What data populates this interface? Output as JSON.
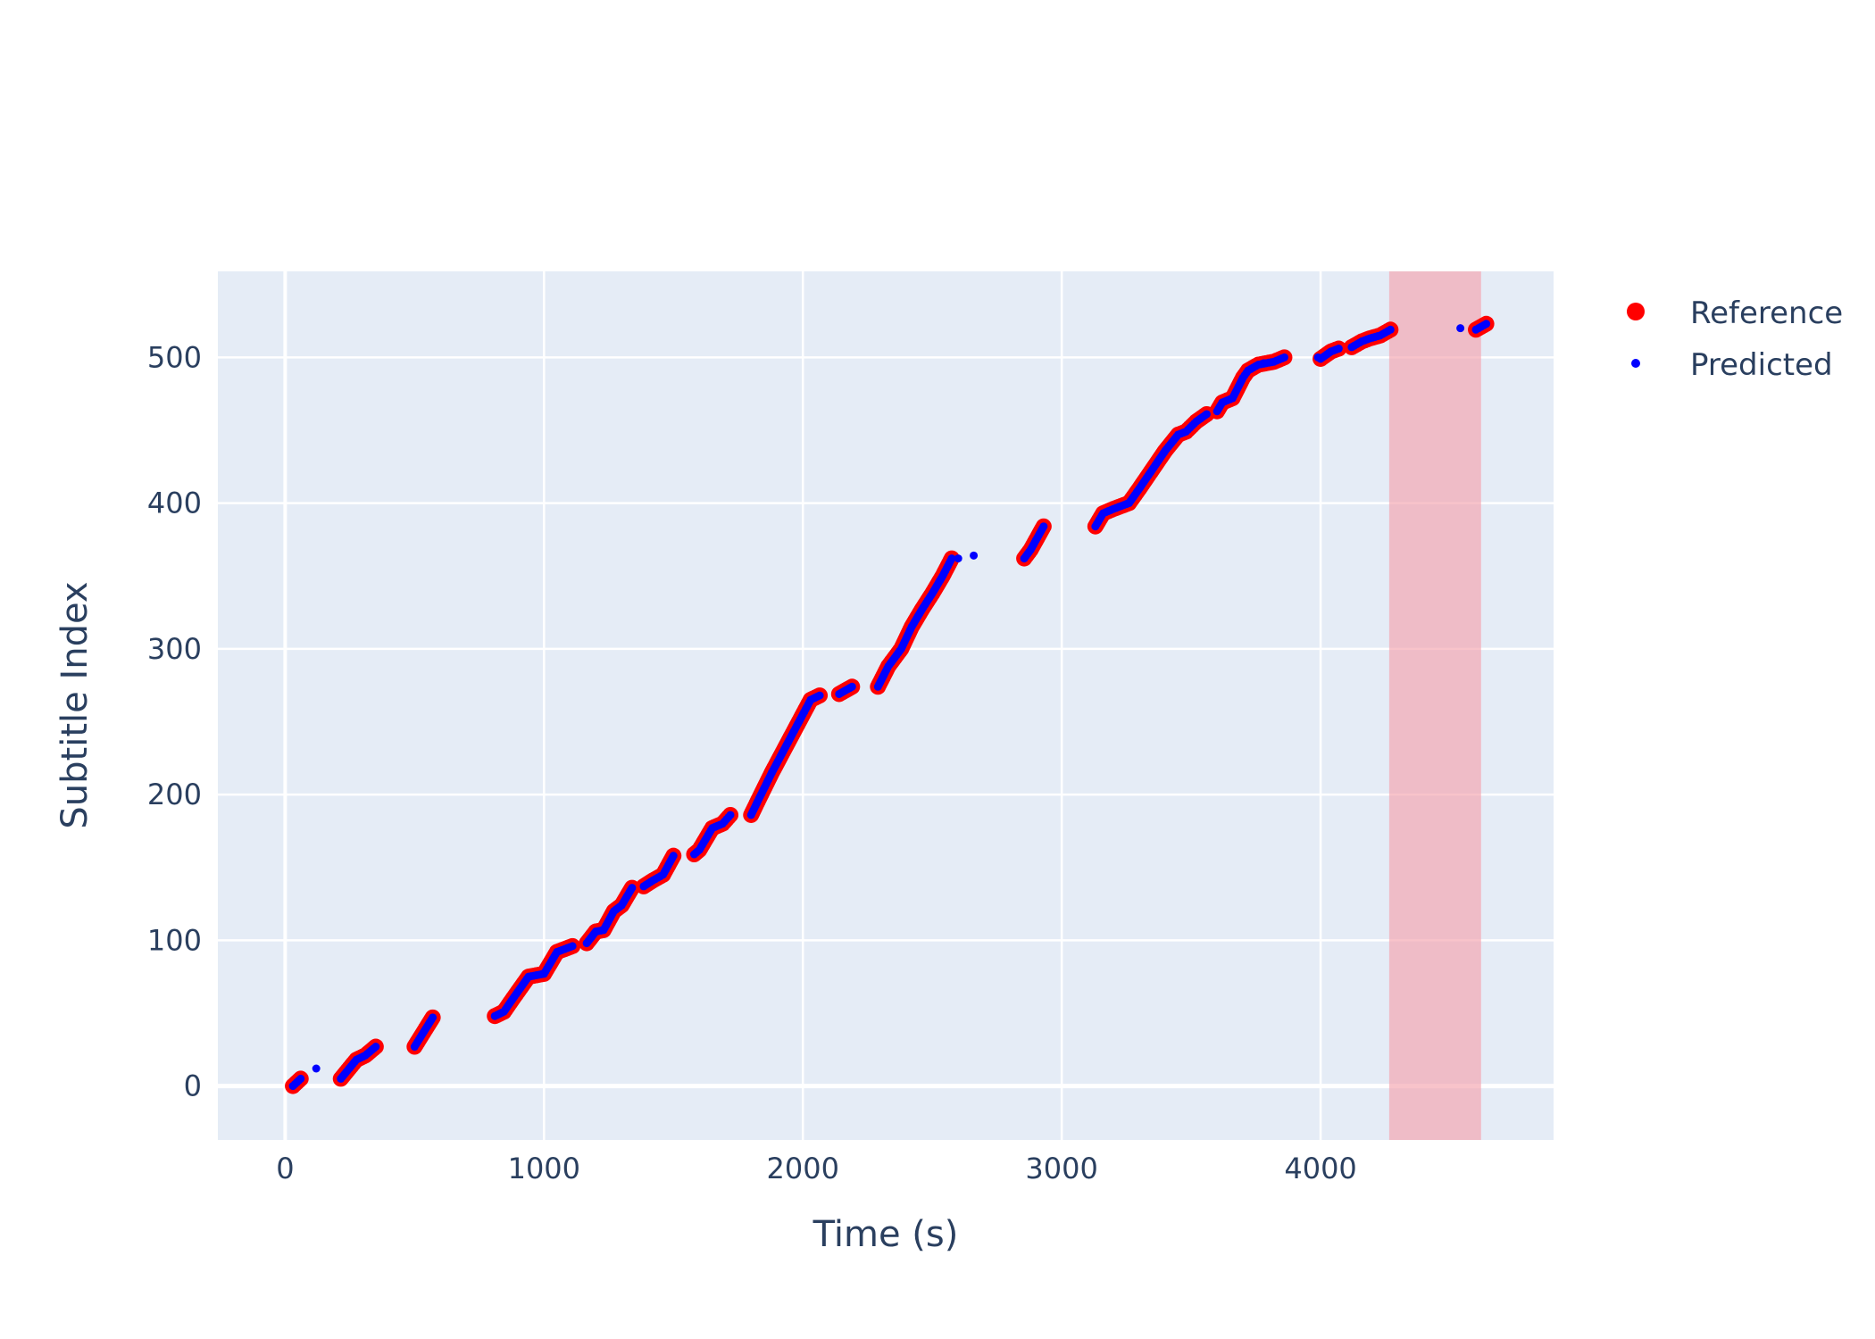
{
  "chart_data": {
    "type": "scatter",
    "title": "",
    "xlabel": "Time (s)",
    "ylabel": "Subtitle Index",
    "xlim": [
      -260,
      4900
    ],
    "ylim": [
      -37,
      559
    ],
    "x_ticks": [
      0,
      1000,
      2000,
      3000,
      4000
    ],
    "x_tick_labels": [
      "0",
      "1000",
      "2000",
      "3000",
      "4000"
    ],
    "y_ticks": [
      0,
      100,
      200,
      300,
      400,
      500
    ],
    "y_tick_labels": [
      "0",
      "100",
      "200",
      "300",
      "400",
      "500"
    ],
    "grid": true,
    "legend_position": "top-right, outside plot",
    "plot_background": "#e5ecf6",
    "highlight_region": {
      "x_start": 4265,
      "x_end": 4620,
      "color": "#f4a3ad"
    },
    "series": [
      {
        "name": "Reference",
        "color": "#ff0000",
        "marker": "large circle",
        "segments": [
          [
            [
              30,
              0
            ],
            [
              60,
              5
            ]
          ],
          [
            [
              215,
              5
            ],
            [
              275,
              18
            ],
            [
              310,
              21
            ],
            [
              350,
              27
            ]
          ],
          [
            [
              500,
              27
            ],
            [
              570,
              47
            ]
          ],
          [
            [
              810,
              48
            ],
            [
              845,
              51
            ],
            [
              880,
              60
            ],
            [
              940,
              75
            ],
            [
              1000,
              77
            ],
            [
              1050,
              92
            ],
            [
              1110,
              96
            ]
          ],
          [
            [
              1165,
              98
            ],
            [
              1200,
              106
            ],
            [
              1230,
              107
            ],
            [
              1270,
              120
            ],
            [
              1300,
              124
            ],
            [
              1340,
              136
            ]
          ],
          [
            [
              1385,
              137
            ],
            [
              1420,
              141
            ],
            [
              1460,
              145
            ],
            [
              1500,
              158
            ]
          ],
          [
            [
              1580,
              159
            ],
            [
              1600,
              162
            ],
            [
              1650,
              177
            ],
            [
              1690,
              180
            ],
            [
              1720,
              186
            ]
          ],
          [
            [
              1800,
              186
            ],
            [
              1830,
              197
            ],
            [
              1880,
              215
            ],
            [
              2000,
              255
            ],
            [
              2030,
              265
            ],
            [
              2065,
              268
            ]
          ],
          [
            [
              2140,
              269
            ],
            [
              2190,
              274
            ]
          ],
          [
            [
              2290,
              274
            ],
            [
              2330,
              288
            ],
            [
              2380,
              300
            ],
            [
              2420,
              315
            ],
            [
              2460,
              327
            ],
            [
              2500,
              338
            ],
            [
              2540,
              350
            ],
            [
              2575,
              362
            ]
          ],
          [
            [
              2855,
              362
            ],
            [
              2880,
              368
            ],
            [
              2930,
              384
            ]
          ],
          [
            [
              3130,
              384
            ],
            [
              3160,
              393
            ],
            [
              3200,
              396
            ],
            [
              3260,
              400
            ],
            [
              3300,
              410
            ],
            [
              3350,
              423
            ],
            [
              3400,
              436
            ],
            [
              3450,
              447
            ],
            [
              3480,
              449
            ],
            [
              3520,
              456
            ],
            [
              3560,
              461
            ]
          ],
          [
            [
              3600,
              463
            ],
            [
              3620,
              469
            ],
            [
              3660,
              472
            ],
            [
              3700,
              486
            ],
            [
              3720,
              491
            ],
            [
              3760,
              495
            ],
            [
              3820,
              497
            ],
            [
              3860,
              500
            ]
          ],
          [
            [
              4000,
              499
            ],
            [
              4040,
              504
            ],
            [
              4070,
              506
            ]
          ],
          [
            [
              4120,
              507
            ],
            [
              4160,
              511
            ],
            [
              4190,
              513
            ],
            [
              4230,
              515
            ],
            [
              4270,
              519
            ]
          ],
          [
            [
              4600,
              519
            ],
            [
              4640,
              523
            ]
          ]
        ]
      },
      {
        "name": "Predicted",
        "color": "#0000ff",
        "marker": "small dot",
        "segments": [
          [
            [
              30,
              0
            ],
            [
              60,
              5
            ]
          ],
          [
            [
              215,
              5
            ],
            [
              275,
              18
            ],
            [
              310,
              21
            ],
            [
              350,
              27
            ]
          ],
          [
            [
              500,
              27
            ],
            [
              570,
              47
            ]
          ],
          [
            [
              810,
              48
            ],
            [
              845,
              51
            ],
            [
              880,
              60
            ],
            [
              940,
              75
            ],
            [
              1000,
              77
            ],
            [
              1050,
              92
            ],
            [
              1110,
              96
            ]
          ],
          [
            [
              1165,
              98
            ],
            [
              1200,
              106
            ],
            [
              1230,
              107
            ],
            [
              1270,
              120
            ],
            [
              1300,
              124
            ],
            [
              1340,
              136
            ]
          ],
          [
            [
              1385,
              137
            ],
            [
              1420,
              141
            ],
            [
              1460,
              145
            ],
            [
              1500,
              158
            ]
          ],
          [
            [
              1580,
              159
            ],
            [
              1600,
              162
            ],
            [
              1650,
              177
            ],
            [
              1690,
              180
            ],
            [
              1720,
              186
            ]
          ],
          [
            [
              1800,
              186
            ],
            [
              1830,
              197
            ],
            [
              1880,
              215
            ],
            [
              2000,
              255
            ],
            [
              2030,
              265
            ],
            [
              2065,
              268
            ]
          ],
          [
            [
              2140,
              269
            ],
            [
              2190,
              274
            ]
          ],
          [
            [
              2290,
              274
            ],
            [
              2330,
              288
            ],
            [
              2380,
              300
            ],
            [
              2420,
              315
            ],
            [
              2460,
              327
            ],
            [
              2500,
              338
            ],
            [
              2540,
              350
            ],
            [
              2575,
              362
            ]
          ],
          [
            [
              2855,
              362
            ],
            [
              2880,
              368
            ],
            [
              2930,
              384
            ]
          ],
          [
            [
              3130,
              384
            ],
            [
              3160,
              393
            ],
            [
              3200,
              396
            ],
            [
              3260,
              400
            ],
            [
              3300,
              410
            ],
            [
              3350,
              423
            ],
            [
              3400,
              436
            ],
            [
              3450,
              447
            ],
            [
              3480,
              449
            ],
            [
              3520,
              456
            ],
            [
              3560,
              461
            ]
          ],
          [
            [
              3600,
              463
            ],
            [
              3620,
              469
            ],
            [
              3660,
              472
            ],
            [
              3700,
              486
            ],
            [
              3720,
              491
            ],
            [
              3760,
              495
            ],
            [
              3820,
              497
            ],
            [
              3860,
              500
            ]
          ],
          [
            [
              4000,
              499
            ],
            [
              4040,
              504
            ],
            [
              4070,
              506
            ]
          ],
          [
            [
              4120,
              507
            ],
            [
              4160,
              511
            ],
            [
              4190,
              513
            ],
            [
              4230,
              515
            ],
            [
              4270,
              519
            ]
          ],
          [
            [
              4600,
              519
            ],
            [
              4640,
              523
            ]
          ]
        ],
        "extra_points": [
          [
            120,
            12
          ],
          [
            2600,
            362
          ],
          [
            2660,
            364
          ],
          [
            3780,
            496
          ],
          [
            3990,
            500
          ],
          [
            4540,
            520
          ]
        ]
      }
    ]
  }
}
